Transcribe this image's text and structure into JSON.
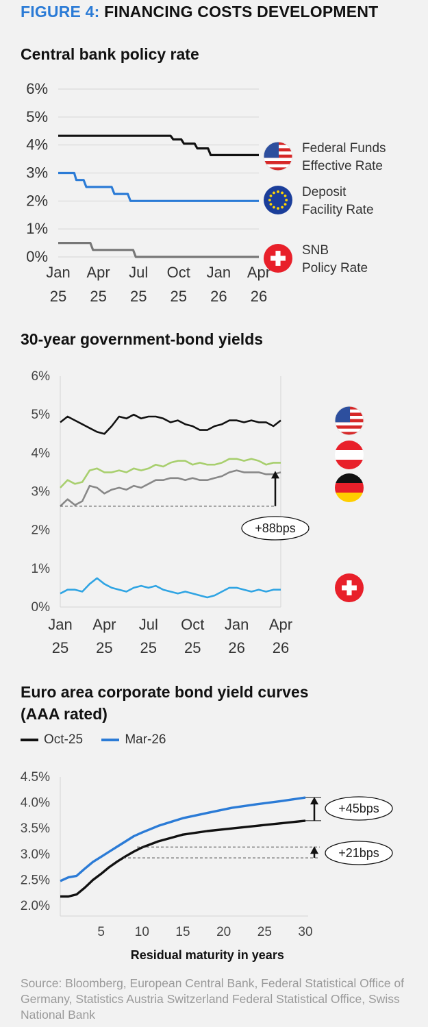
{
  "figure": {
    "label": "FIGURE 4:",
    "title": "FINANCING COSTS DEVELOPMENT"
  },
  "chart_data": [
    {
      "type": "line",
      "title": "Central bank policy rate",
      "ylim": [
        0,
        6
      ],
      "yticks": [
        "0%",
        "1%",
        "2%",
        "3%",
        "4%",
        "5%",
        "6%"
      ],
      "x_tick_values": [
        0,
        3,
        6,
        9,
        12,
        15
      ],
      "x_tick_labels": [
        [
          "Jan",
          "25"
        ],
        [
          "Apr",
          "25"
        ],
        [
          "Jul",
          "25"
        ],
        [
          "Oct",
          "25"
        ],
        [
          "Jan",
          "26"
        ],
        [
          "Apr",
          "26"
        ]
      ],
      "x_unit": "months since Jan 2025",
      "xlim": [
        0,
        15
      ],
      "series": [
        {
          "name": "Federal Funds Effective Rate",
          "legend": [
            "Federal Funds",
            "Effective Rate"
          ],
          "color": "#111111",
          "flag": "us-flag-icon",
          "x": [
            0,
            8.4,
            8.6,
            9.2,
            9.4,
            10.2,
            10.4,
            11.2,
            11.4,
            15
          ],
          "y": [
            4.33,
            4.33,
            4.2,
            4.2,
            4.05,
            4.05,
            3.88,
            3.88,
            3.64,
            3.64
          ]
        },
        {
          "name": "Deposit Facility Rate",
          "legend": [
            "Deposit",
            "Facility Rate"
          ],
          "color": "#2b7bd6",
          "flag": "eu-flag-icon",
          "x": [
            0,
            1.2,
            1.35,
            1.9,
            2.1,
            4.0,
            4.2,
            5.2,
            5.4,
            15
          ],
          "y": [
            3.0,
            3.0,
            2.75,
            2.75,
            2.5,
            2.5,
            2.25,
            2.25,
            2.0,
            2.0
          ]
        },
        {
          "name": "SNB Policy Rate",
          "legend": [
            "SNB",
            "Policy Rate"
          ],
          "color": "#777777",
          "flag": "swiss-flag-icon",
          "x": [
            0,
            2.4,
            2.6,
            5.6,
            5.8,
            15
          ],
          "y": [
            0.5,
            0.5,
            0.25,
            0.25,
            0.0,
            0.0
          ]
        }
      ]
    },
    {
      "type": "line",
      "title": "30-year government-bond yields",
      "ylim": [
        0,
        6
      ],
      "yticks": [
        "0%",
        "1%",
        "2%",
        "3%",
        "4%",
        "5%",
        "6%"
      ],
      "x_tick_values": [
        0,
        3,
        6,
        9,
        12,
        15
      ],
      "x_tick_labels": [
        [
          "Jan",
          "25"
        ],
        [
          "Apr",
          "25"
        ],
        [
          "Jul",
          "25"
        ],
        [
          "Oct",
          "25"
        ],
        [
          "Jan",
          "26"
        ],
        [
          "Apr",
          "26"
        ]
      ],
      "x_unit": "months since Jan 2025",
      "xlim": [
        0,
        15
      ],
      "series": [
        {
          "name": "US",
          "color": "#111111",
          "flag": "us-flag-icon",
          "x": [
            0,
            0.5,
            1,
            1.5,
            2,
            2.5,
            3,
            3.5,
            4,
            4.5,
            5,
            5.5,
            6,
            6.5,
            7,
            7.5,
            8,
            8.5,
            9,
            9.5,
            10,
            10.5,
            11,
            11.5,
            12,
            12.5,
            13,
            13.5,
            14,
            14.5,
            15
          ],
          "y": [
            4.8,
            4.95,
            4.85,
            4.75,
            4.65,
            4.55,
            4.5,
            4.7,
            4.95,
            4.9,
            5.0,
            4.9,
            4.95,
            4.95,
            4.9,
            4.8,
            4.85,
            4.75,
            4.7,
            4.6,
            4.6,
            4.7,
            4.75,
            4.85,
            4.85,
            4.8,
            4.85,
            4.8,
            4.8,
            4.7,
            4.85
          ]
        },
        {
          "name": "Austria",
          "color": "#a8cf6e",
          "flag": "austria-flag-icon",
          "x": [
            0,
            0.5,
            1,
            1.5,
            2,
            2.5,
            3,
            3.5,
            4,
            4.5,
            5,
            5.5,
            6,
            6.5,
            7,
            7.5,
            8,
            8.5,
            9,
            9.5,
            10,
            10.5,
            11,
            11.5,
            12,
            12.5,
            13,
            13.5,
            14,
            14.5,
            15
          ],
          "y": [
            3.1,
            3.3,
            3.2,
            3.25,
            3.55,
            3.6,
            3.5,
            3.5,
            3.55,
            3.5,
            3.6,
            3.55,
            3.6,
            3.7,
            3.65,
            3.75,
            3.8,
            3.8,
            3.7,
            3.75,
            3.7,
            3.7,
            3.75,
            3.85,
            3.85,
            3.8,
            3.85,
            3.8,
            3.7,
            3.75,
            3.75
          ]
        },
        {
          "name": "Germany",
          "color": "#888888",
          "flag": "germany-flag-icon",
          "x": [
            0,
            0.5,
            1,
            1.5,
            2,
            2.5,
            3,
            3.5,
            4,
            4.5,
            5,
            5.5,
            6,
            6.5,
            7,
            7.5,
            8,
            8.5,
            9,
            9.5,
            10,
            10.5,
            11,
            11.5,
            12,
            12.5,
            13,
            13.5,
            14,
            14.5,
            15
          ],
          "y": [
            2.62,
            2.8,
            2.65,
            2.75,
            3.15,
            3.1,
            2.95,
            3.05,
            3.1,
            3.05,
            3.15,
            3.1,
            3.2,
            3.3,
            3.3,
            3.35,
            3.35,
            3.3,
            3.35,
            3.3,
            3.3,
            3.35,
            3.4,
            3.5,
            3.55,
            3.5,
            3.5,
            3.5,
            3.45,
            3.45,
            3.5
          ]
        },
        {
          "name": "Switzerland",
          "color": "#2fa4e3",
          "flag": "swiss-flag-icon",
          "x": [
            0,
            0.5,
            1,
            1.5,
            2,
            2.5,
            3,
            3.5,
            4,
            4.5,
            5,
            5.5,
            6,
            6.5,
            7,
            7.5,
            8,
            8.5,
            9,
            9.5,
            10,
            10.5,
            11,
            11.5,
            12,
            12.5,
            13,
            13.5,
            14,
            14.5,
            15
          ],
          "y": [
            0.35,
            0.45,
            0.45,
            0.4,
            0.6,
            0.75,
            0.6,
            0.5,
            0.45,
            0.4,
            0.5,
            0.55,
            0.5,
            0.55,
            0.45,
            0.4,
            0.35,
            0.4,
            0.35,
            0.3,
            0.25,
            0.3,
            0.4,
            0.5,
            0.5,
            0.45,
            0.4,
            0.45,
            0.4,
            0.45,
            0.45
          ]
        }
      ],
      "annotation": {
        "label": "+88bps",
        "from_y": 2.62,
        "to_y": 3.5
      }
    },
    {
      "type": "line",
      "title": "Euro area corporate bond yield curves (AAA rated)",
      "title_lines": [
        "Euro area corporate bond yield curves",
        "(AAA rated)"
      ],
      "xlabel": "Residual maturity in years",
      "xlim": [
        0,
        30
      ],
      "xticks": [
        5,
        10,
        15,
        20,
        25,
        30
      ],
      "ylim": [
        2.0,
        4.5
      ],
      "yticks": [
        "2.0%",
        "2.5%",
        "3.0%",
        "3.5%",
        "4.0%",
        "4.5%"
      ],
      "series": [
        {
          "name": "Oct-25",
          "color": "#111111",
          "x": [
            0,
            1,
            2,
            3,
            4,
            5,
            6,
            7,
            8,
            9,
            10,
            12,
            15,
            18,
            21,
            24,
            27,
            30
          ],
          "y": [
            2.18,
            2.18,
            2.22,
            2.35,
            2.5,
            2.62,
            2.75,
            2.86,
            2.96,
            3.05,
            3.13,
            3.25,
            3.38,
            3.45,
            3.5,
            3.55,
            3.6,
            3.65
          ]
        },
        {
          "name": "Mar-26",
          "color": "#2b7bd6",
          "x": [
            0,
            1,
            2,
            3,
            4,
            5,
            6,
            7,
            8,
            9,
            10,
            12,
            15,
            18,
            21,
            24,
            27,
            30
          ],
          "y": [
            2.48,
            2.55,
            2.58,
            2.72,
            2.85,
            2.95,
            3.05,
            3.15,
            3.25,
            3.35,
            3.42,
            3.55,
            3.7,
            3.8,
            3.9,
            3.97,
            4.03,
            4.1
          ]
        }
      ],
      "annotations": [
        {
          "label": "+45bps",
          "from_y": 3.65,
          "to_y": 4.1
        },
        {
          "label": "+21bps",
          "from_y": 2.93,
          "to_y": 3.14
        }
      ]
    }
  ],
  "source": "Source: Bloomberg, European Central Bank, Federal Statistical Office of Germany, Statistics Austria Switzerland Federal Statistical Office, Swiss National Bank"
}
